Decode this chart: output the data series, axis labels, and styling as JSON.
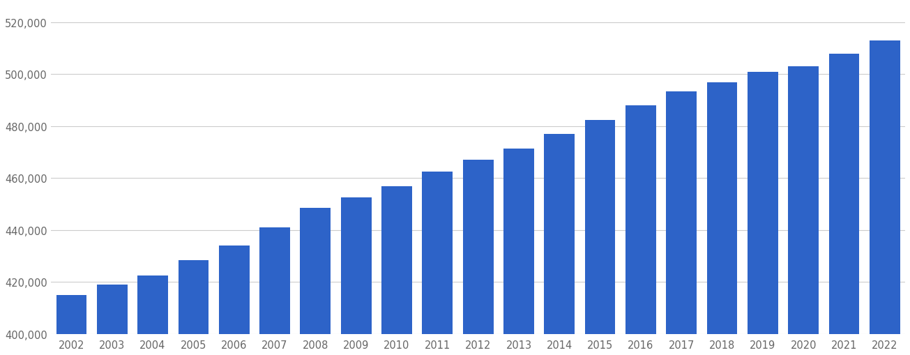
{
  "years": [
    2002,
    2003,
    2004,
    2005,
    2006,
    2007,
    2008,
    2009,
    2010,
    2011,
    2012,
    2013,
    2014,
    2015,
    2016,
    2017,
    2018,
    2019,
    2020,
    2021,
    2022
  ],
  "values": [
    415000,
    419000,
    422500,
    428500,
    434000,
    441000,
    448500,
    452500,
    457000,
    462500,
    467000,
    471500,
    477000,
    482500,
    488000,
    493500,
    497000,
    501000,
    503000,
    508000,
    513000
  ],
  "bar_color": "#2d63c8",
  "background_color": "#ffffff",
  "ylim_min": 400000,
  "ylim_max": 527000,
  "yticks": [
    400000,
    420000,
    440000,
    460000,
    480000,
    500000,
    520000
  ],
  "grid_color": "#cccccc",
  "tick_label_color": "#666666",
  "tick_label_fontsize": 10.5
}
